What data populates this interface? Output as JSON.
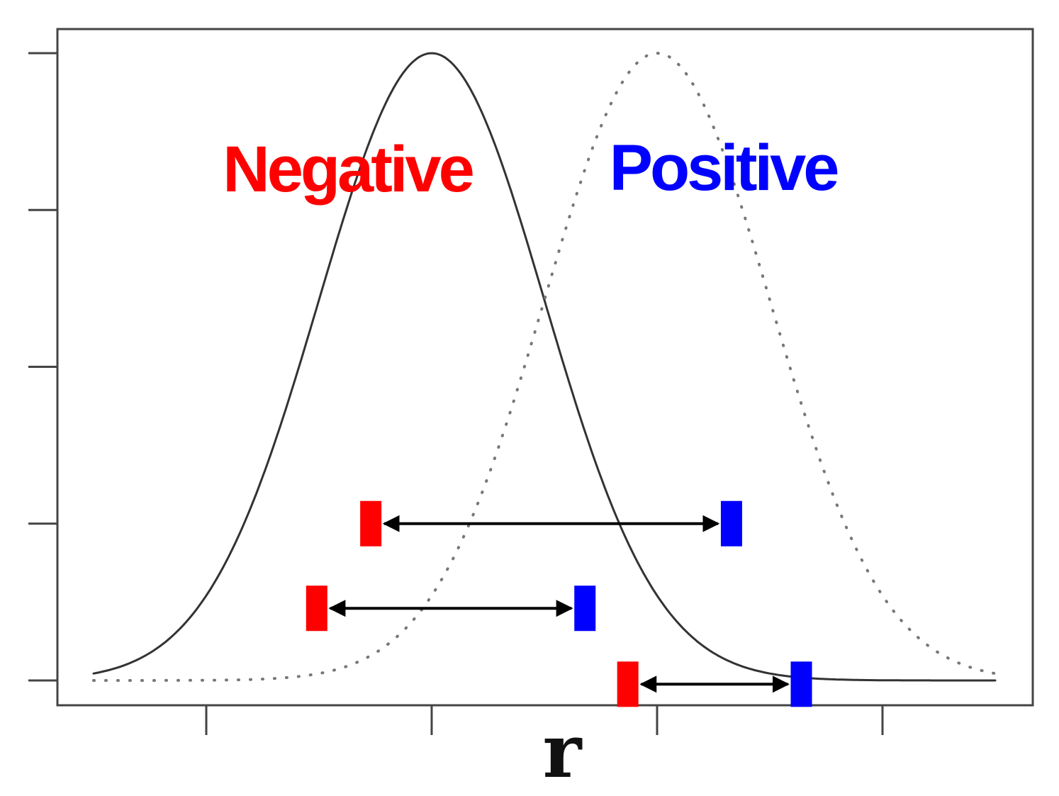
{
  "chart_data": {
    "type": "line",
    "title": "",
    "xlabel": "r",
    "ylabel": "",
    "xlim": [
      -1.65,
      2.72
    ],
    "ylim": [
      -0.04,
      1.04
    ],
    "x_ticks": [
      -1,
      0,
      1,
      2
    ],
    "y_ticks": [
      0,
      0.25,
      0.5,
      0.75,
      1
    ],
    "tick_labels_visible": false,
    "grid": false,
    "series": [
      {
        "name": "Negative",
        "color": "#ff0000",
        "curve_color": "#333333",
        "line_style": "solid",
        "distribution": "normal",
        "mean": 0,
        "sd": 0.5,
        "peak": 1.0,
        "x_range": [
          -1.5,
          2.5
        ]
      },
      {
        "name": "Positive",
        "color": "#0000ff",
        "curve_color": "#777777",
        "line_style": "dotted",
        "distribution": "normal",
        "mean": 1,
        "sd": 0.5,
        "peak": 1.0,
        "x_range": [
          -1.5,
          2.5
        ]
      }
    ],
    "pairs": [
      {
        "negative_x": -0.27,
        "positive_x": 1.33,
        "y": 0.25
      },
      {
        "negative_x": -0.51,
        "positive_x": 0.68,
        "y": 0.115
      },
      {
        "negative_x": 0.87,
        "positive_x": 1.64,
        "y": -0.006
      }
    ],
    "marker_colors": {
      "negative": "#ff0000",
      "positive": "#0000ff",
      "arrow": "#000000"
    }
  }
}
